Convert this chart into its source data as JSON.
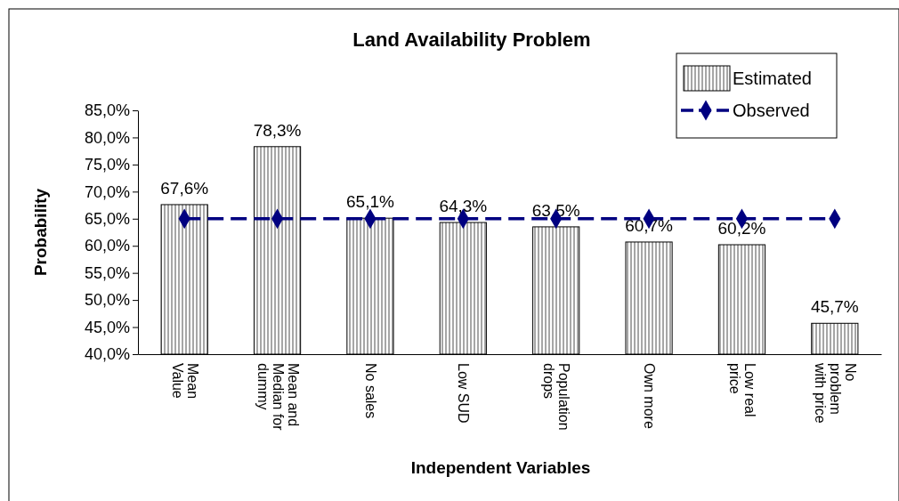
{
  "chart_data": {
    "type": "bar",
    "title": "Land Availability Problem",
    "xlabel": "Independent Variables",
    "ylabel": "Probability",
    "categories": [
      "Mean\nValue",
      "Mean and\nMedian for\ndummy",
      "No sales",
      "Low SUD",
      "Population\ndrops",
      "Own more",
      "Low real\nprice",
      "No\nproblem\nwith price"
    ],
    "series": [
      {
        "name": "Estimated",
        "color": "#000000",
        "values": [
          67.6,
          78.3,
          65.1,
          64.3,
          63.5,
          60.7,
          60.2,
          45.7
        ],
        "value_labels": [
          "67,6%",
          "78,3%",
          "65,1%",
          "64,3%",
          "63,5%",
          "60,7%",
          "60,2%",
          "45,7%"
        ]
      },
      {
        "name": "Observed",
        "type": "line",
        "color": "#000080",
        "marker": "diamond",
        "line_style": "dashed",
        "values": [
          65,
          65,
          65,
          65,
          65,
          65,
          65,
          65
        ]
      }
    ],
    "ylim": [
      40,
      85
    ],
    "yticks": [
      {
        "value": 40,
        "label": "40,0%"
      },
      {
        "value": 45,
        "label": "45,0%"
      },
      {
        "value": 50,
        "label": "50,0%"
      },
      {
        "value": 55,
        "label": "55,0%"
      },
      {
        "value": 60,
        "label": "60,0%"
      },
      {
        "value": 65,
        "label": "65,0%"
      },
      {
        "value": 70,
        "label": "70,0%"
      },
      {
        "value": 75,
        "label": "75,0%"
      },
      {
        "value": 80,
        "label": "80,0%"
      },
      {
        "value": 85,
        "label": "85,0%"
      }
    ],
    "grid": false,
    "legend": "top right"
  }
}
